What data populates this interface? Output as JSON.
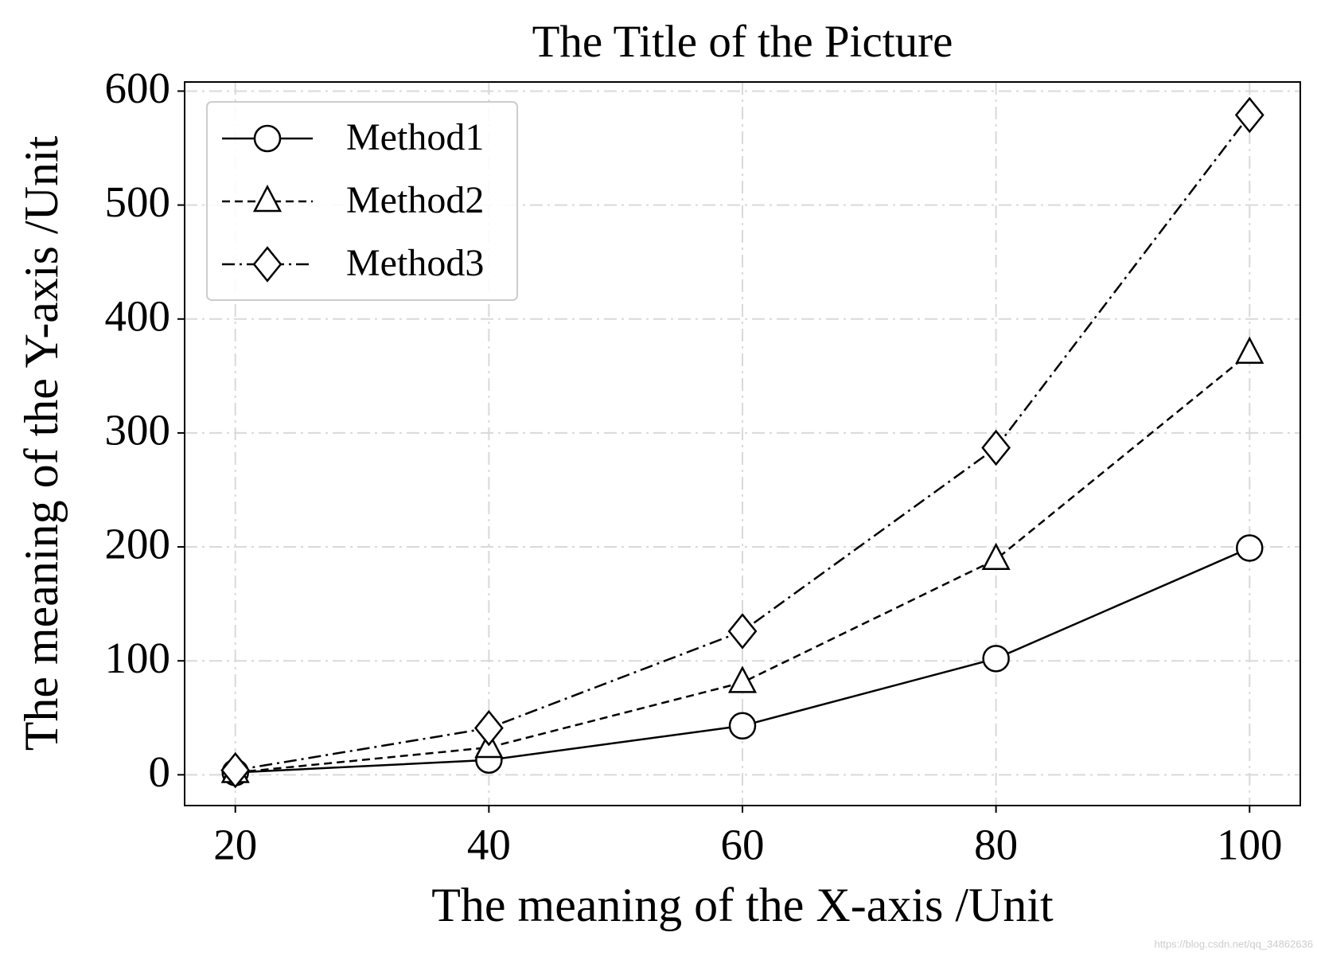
{
  "chart_data": {
    "type": "line",
    "title": "The Title of the Picture",
    "x_label": "The meaning of the X-axis /Unit",
    "y_label": "The meaning of the Y-axis /Unit",
    "x": [
      20,
      40,
      60,
      80,
      100
    ],
    "series": [
      {
        "name": "Method1",
        "color": "#000000",
        "linestyle": "solid",
        "marker": "circle",
        "values": [
          2,
          13,
          43,
          102,
          199
        ]
      },
      {
        "name": "Method2",
        "color": "#000000",
        "linestyle": "dashed",
        "marker": "triangle",
        "values": [
          2,
          24,
          81,
          189,
          370
        ]
      },
      {
        "name": "Method3",
        "color": "#000000",
        "linestyle": "dashdot",
        "marker": "diamond",
        "values": [
          4,
          41,
          126,
          287,
          579
        ]
      }
    ],
    "xlim": [
      16,
      104
    ],
    "ylim": [
      -27,
      608
    ],
    "xticks": [
      20,
      40,
      60,
      80,
      100
    ],
    "yticks": [
      0,
      100,
      200,
      300,
      400,
      500,
      600
    ],
    "grid": true,
    "legend": "upper-left",
    "watermark": "https://blog.csdn.net/qq_34862636"
  }
}
